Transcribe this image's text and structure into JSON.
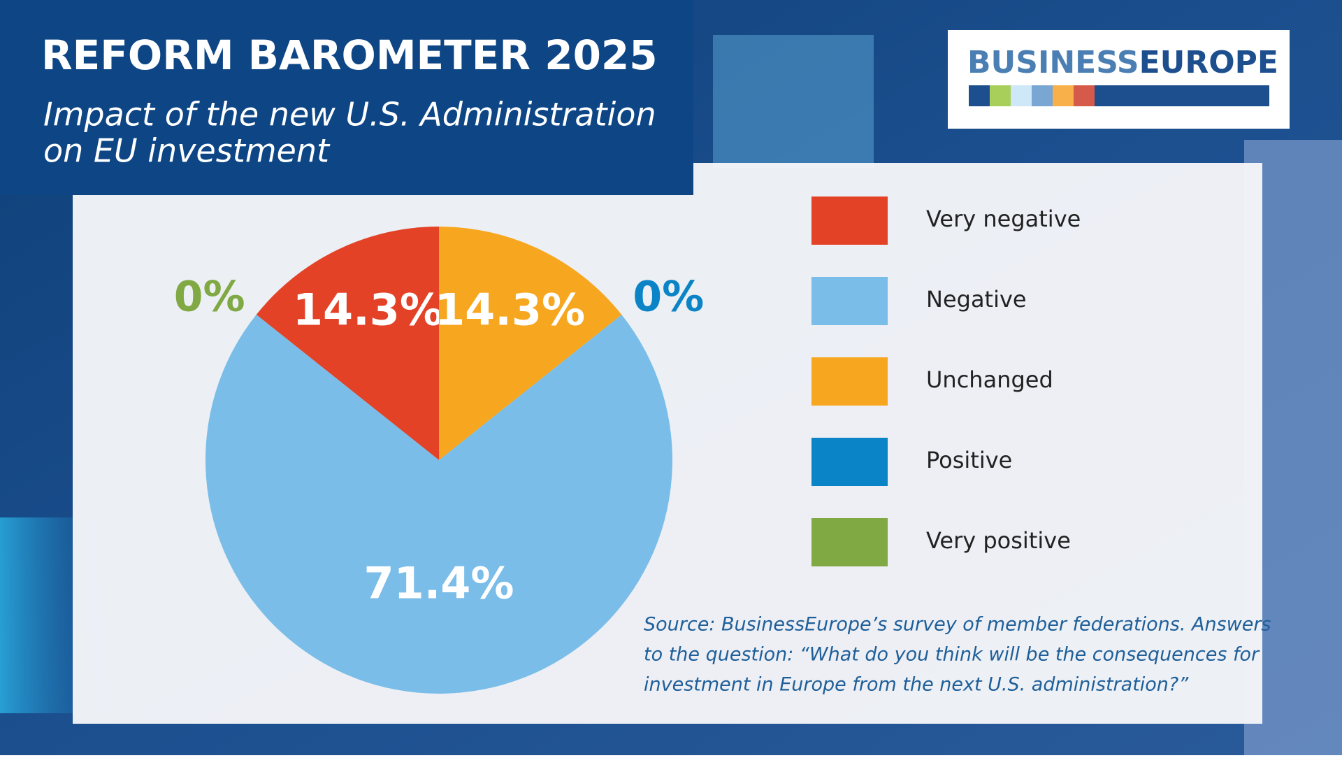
{
  "chart_data": {
    "type": "pie",
    "title": "REFORM BAROMETER 2025",
    "subtitle": [
      "Impact of the new U.S. Administration",
      "on EU investment"
    ],
    "categories": [
      "Very negative",
      "Negative",
      "Unchanged",
      "Positive",
      "Very positive"
    ],
    "values": [
      14.3,
      71.4,
      14.3,
      0,
      0
    ],
    "value_labels": [
      "14.3%",
      "71.4%",
      "14.3%",
      "0%",
      "0%"
    ],
    "colors": [
      "#e44227",
      "#79bde8",
      "#f7a71f",
      "#0a84c6",
      "#80a843"
    ],
    "source": [
      "Source: BusinessEurope’s survey of member federations. Answers",
      "to the question: “What do you think will be the consequences for",
      "investment in Europe from the next U.S. administration?”"
    ]
  },
  "logo": {
    "part1": "BUSINESS",
    "part2": "EUROPE"
  }
}
